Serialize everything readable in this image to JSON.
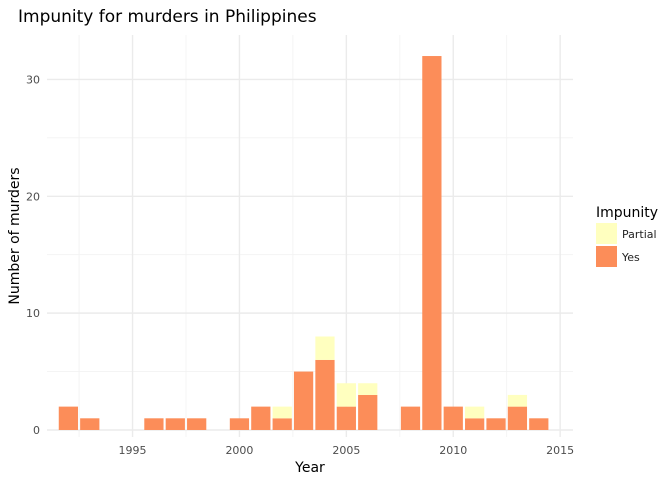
{
  "chart_data": {
    "type": "bar",
    "stacked": true,
    "title": "Impunity for murders in Philippines",
    "xlabel": "Year",
    "ylabel": "Number of murders",
    "xlim": [
      1991,
      2015.6
    ],
    "ylim": [
      -0.6,
      33.8
    ],
    "x_ticks": [
      1995,
      2000,
      2005,
      2010,
      2015
    ],
    "y_ticks": [
      0,
      10,
      20,
      30
    ],
    "legend": {
      "title": "Impunity",
      "position": "right"
    },
    "series": [
      {
        "name": "Yes",
        "color": "#fc8d59",
        "points": [
          {
            "x": 1992,
            "y": 2
          },
          {
            "x": 1993,
            "y": 1
          },
          {
            "x": 1996,
            "y": 1
          },
          {
            "x": 1997,
            "y": 1
          },
          {
            "x": 1998,
            "y": 1
          },
          {
            "x": 2000,
            "y": 1
          },
          {
            "x": 2001,
            "y": 2
          },
          {
            "x": 2002,
            "y": 1
          },
          {
            "x": 2003,
            "y": 5
          },
          {
            "x": 2004,
            "y": 6
          },
          {
            "x": 2005,
            "y": 2
          },
          {
            "x": 2006,
            "y": 3
          },
          {
            "x": 2008,
            "y": 2
          },
          {
            "x": 2009,
            "y": 32
          },
          {
            "x": 2010,
            "y": 2
          },
          {
            "x": 2011,
            "y": 1
          },
          {
            "x": 2012,
            "y": 1
          },
          {
            "x": 2013,
            "y": 2
          },
          {
            "x": 2014,
            "y": 1
          }
        ]
      },
      {
        "name": "Partial",
        "color": "#ffffbf",
        "points": [
          {
            "x": 2002,
            "y": 1
          },
          {
            "x": 2004,
            "y": 2
          },
          {
            "x": 2005,
            "y": 2
          },
          {
            "x": 2006,
            "y": 1
          },
          {
            "x": 2011,
            "y": 1
          },
          {
            "x": 2013,
            "y": 1
          }
        ]
      }
    ],
    "grid": true
  }
}
